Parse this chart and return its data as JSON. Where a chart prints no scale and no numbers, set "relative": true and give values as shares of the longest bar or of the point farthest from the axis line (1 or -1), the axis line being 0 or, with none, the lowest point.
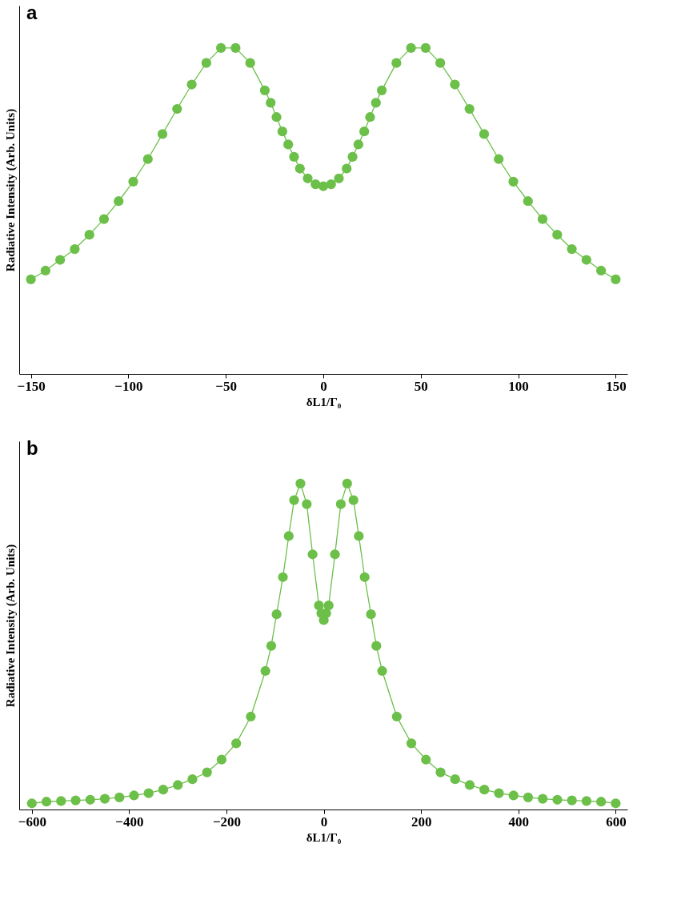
{
  "chart_data": [
    {
      "type": "line",
      "title": "a",
      "xlabel": "δL1/Γ₀",
      "ylabel": "Radiative Intensity (Arb. Units)",
      "relative": true,
      "marker": "circle",
      "line_style": "solid",
      "grid": false,
      "tick_labels": "x",
      "xlim": [
        -156,
        156
      ],
      "xticks": [
        -150,
        -100,
        -50,
        0,
        50,
        100,
        150
      ],
      "series": [
        {
          "color": "#6cc04a",
          "x": [
            -150,
            -142.5,
            -135,
            -127.5,
            -120,
            -112.5,
            -105,
            -97.5,
            -90,
            -82.5,
            -75,
            -67.5,
            -60,
            -52.5,
            -45,
            -37.5,
            -30,
            -27,
            -24,
            -21,
            -18,
            -15,
            -12,
            -8,
            -4,
            0,
            4,
            8,
            12,
            15,
            18,
            21,
            24,
            27,
            30,
            37.5,
            45,
            52.5,
            60,
            67.5,
            75,
            82.5,
            90,
            97.5,
            105,
            112.5,
            120,
            127.5,
            135,
            142.5,
            150
          ],
          "values": [
            0.29,
            0.317,
            0.35,
            0.383,
            0.427,
            0.475,
            0.53,
            0.59,
            0.659,
            0.736,
            0.813,
            0.888,
            0.954,
            1.0,
            1.0,
            0.954,
            0.87,
            0.832,
            0.788,
            0.744,
            0.704,
            0.666,
            0.63,
            0.6,
            0.582,
            0.576,
            0.582,
            0.6,
            0.63,
            0.666,
            0.704,
            0.744,
            0.788,
            0.832,
            0.87,
            0.954,
            1.0,
            1.0,
            0.954,
            0.888,
            0.813,
            0.736,
            0.659,
            0.59,
            0.53,
            0.475,
            0.427,
            0.383,
            0.35,
            0.317,
            0.29
          ]
        }
      ]
    },
    {
      "type": "line",
      "title": "b",
      "xlabel": "δL1/Γ₀",
      "ylabel": "Radiative Intensity (Arb. Units)",
      "relative": true,
      "marker": "circle",
      "line_style": "solid",
      "grid": false,
      "tick_labels": "x",
      "xlim": [
        -626,
        624
      ],
      "xticks": [
        -600,
        -400,
        -200,
        0,
        200,
        400,
        600
      ],
      "series": [
        {
          "color": "#6cc04a",
          "x": [
            -600,
            -570,
            -540,
            -510,
            -480,
            -450,
            -420,
            -390,
            -360,
            -330,
            -300,
            -270,
            -240,
            -210,
            -180,
            -150,
            -120,
            -108,
            -97,
            -84,
            -72,
            -61,
            -48,
            -35,
            -23,
            -10,
            -5,
            0,
            5,
            10,
            23,
            35,
            48,
            61,
            72,
            84,
            97,
            108,
            120,
            150,
            180,
            210,
            240,
            270,
            300,
            330,
            360,
            390,
            420,
            450,
            480,
            510,
            540,
            570,
            600
          ],
          "values": [
            0.019,
            0.024,
            0.026,
            0.028,
            0.03,
            0.033,
            0.037,
            0.043,
            0.05,
            0.061,
            0.075,
            0.093,
            0.114,
            0.153,
            0.203,
            0.285,
            0.425,
            0.502,
            0.599,
            0.713,
            0.839,
            0.949,
            1.0,
            0.937,
            0.783,
            0.626,
            0.602,
            0.581,
            0.602,
            0.626,
            0.783,
            0.937,
            1.0,
            0.949,
            0.839,
            0.713,
            0.599,
            0.502,
            0.425,
            0.285,
            0.203,
            0.153,
            0.114,
            0.093,
            0.075,
            0.061,
            0.05,
            0.043,
            0.037,
            0.033,
            0.03,
            0.028,
            0.026,
            0.024,
            0.019
          ]
        }
      ]
    }
  ]
}
